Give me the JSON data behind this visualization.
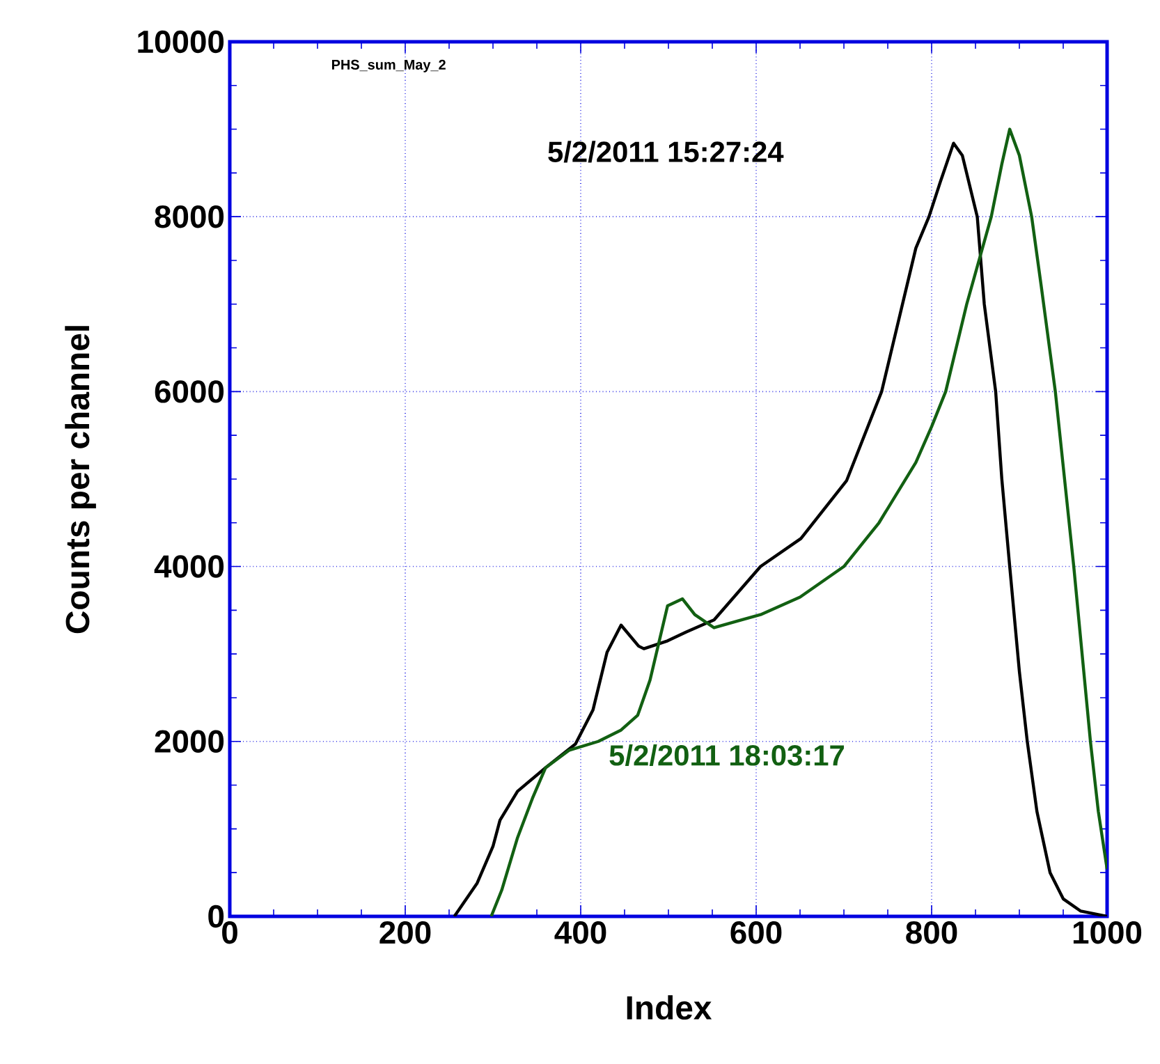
{
  "chart_data": {
    "type": "line",
    "title": "PHS_sum_May_2",
    "xlabel": "Index",
    "ylabel": "Counts per channel",
    "xlim": [
      0,
      1000
    ],
    "ylim": [
      0,
      10000
    ],
    "xticks": [
      0,
      200,
      400,
      600,
      800,
      1000
    ],
    "yticks": [
      0,
      2000,
      4000,
      6000,
      8000,
      10000
    ],
    "grid": true,
    "marker": "none",
    "line_style": "solid",
    "series": [
      {
        "name": "5/2/2011 15:27:24",
        "color": "#000000",
        "x": [
          256,
          282,
          300,
          308,
          328,
          360,
          394,
          414,
          430,
          446,
          466,
          472,
          499,
          520,
          552,
          605,
          651,
          703,
          743,
          782,
          797,
          810,
          825,
          835,
          852,
          860,
          873,
          880,
          889,
          900,
          909,
          920,
          935,
          950,
          970,
          1000
        ],
        "values": [
          0,
          380,
          800,
          1100,
          1430,
          1700,
          1970,
          2360,
          3020,
          3330,
          3090,
          3060,
          3150,
          3250,
          3390,
          4000,
          4320,
          4980,
          6000,
          7640,
          8000,
          8400,
          8840,
          8700,
          8000,
          7000,
          6000,
          5000,
          4000,
          2800,
          2000,
          1200,
          500,
          200,
          60,
          0
        ]
      },
      {
        "name": "5/2/2011 18:03:17",
        "color": "#126012",
        "x": [
          298,
          310,
          328,
          345,
          360,
          387,
          420,
          446,
          465,
          479,
          499,
          516,
          530,
          552,
          580,
          605,
          650,
          700,
          740,
          782,
          800,
          816,
          840,
          868,
          880,
          889,
          900,
          914,
          925,
          941,
          962,
          981,
          990,
          1000
        ],
        "values": [
          0,
          300,
          900,
          1350,
          1700,
          1900,
          2000,
          2130,
          2300,
          2700,
          3550,
          3630,
          3450,
          3300,
          3380,
          3450,
          3650,
          4000,
          4500,
          5190,
          5600,
          6000,
          7000,
          8000,
          8600,
          9000,
          8700,
          8000,
          7200,
          6000,
          4000,
          2000,
          1200,
          540
        ]
      }
    ]
  }
}
